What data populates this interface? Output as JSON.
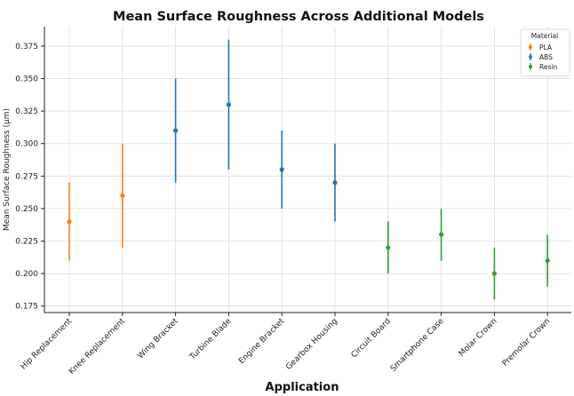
{
  "chart_data": {
    "type": "scatter",
    "title": "Mean Surface Roughness Across Additional Models",
    "xlabel": "Application",
    "ylabel": "Mean Surface Roughness (µm)",
    "ylim": [
      0.17,
      0.39
    ],
    "yticks": [
      "0.175",
      "0.200",
      "0.225",
      "0.250",
      "0.275",
      "0.300",
      "0.325",
      "0.350",
      "0.375"
    ],
    "grid": true,
    "legend": {
      "title": "Material",
      "placement": "top-right"
    },
    "categories": [
      "Hip Replacement",
      "Knee Replacement",
      "Wing Bracket",
      "Turbine Blade",
      "Engine Bracket",
      "Gearbox Housing",
      "Circuit Board",
      "Smartphone Case",
      "Molar Crown",
      "Premolar Crown"
    ],
    "series": [
      {
        "name": "PLA",
        "color": "#ff7f0e",
        "points": [
          {
            "category": "Hip Replacement",
            "mean": 0.24,
            "err": 0.03
          },
          {
            "category": "Knee Replacement",
            "mean": 0.26,
            "err": 0.04
          }
        ]
      },
      {
        "name": "ABS",
        "color": "#1f77b4",
        "points": [
          {
            "category": "Wing Bracket",
            "mean": 0.31,
            "err": 0.04
          },
          {
            "category": "Turbine Blade",
            "mean": 0.33,
            "err": 0.05
          },
          {
            "category": "Engine Bracket",
            "mean": 0.28,
            "err": 0.03
          },
          {
            "category": "Gearbox Housing",
            "mean": 0.27,
            "err": 0.03
          }
        ]
      },
      {
        "name": "Resin",
        "color": "#2ca02c",
        "points": [
          {
            "category": "Circuit Board",
            "mean": 0.22,
            "err": 0.02
          },
          {
            "category": "Smartphone Case",
            "mean": 0.23,
            "err": 0.02
          },
          {
            "category": "Molar Crown",
            "mean": 0.2,
            "err": 0.02
          },
          {
            "category": "Premolar Crown",
            "mean": 0.21,
            "err": 0.02
          }
        ]
      }
    ]
  }
}
